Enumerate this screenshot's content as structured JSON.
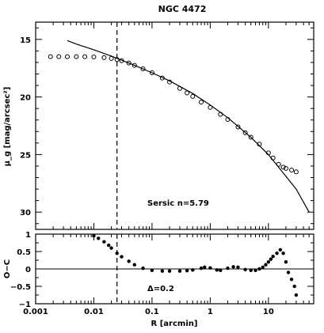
{
  "chart_data": [
    {
      "type": "scatter",
      "title": "NGC 4472",
      "xlabel": "R [arcmin]",
      "ylabel": "μ_g [mag/arcsec²]",
      "x_scale": "log",
      "xlim": [
        0.001,
        60
      ],
      "ylim": [
        13.5,
        31.5
      ],
      "y_inverted": true,
      "x_ticks": [
        "0.001",
        "0.01",
        "0.1",
        "1",
        "10"
      ],
      "y_ticks": [
        "15",
        "20",
        "25",
        "30"
      ],
      "annotation": "Sersic n=5.79",
      "vertical_line_x": 0.025,
      "series": [
        {
          "style": "open-circles",
          "x": [
            0.0018,
            0.0025,
            0.0035,
            0.005,
            0.007,
            0.01,
            0.015,
            0.02,
            0.025,
            0.03,
            0.04,
            0.05,
            0.07,
            0.1,
            0.15,
            0.2,
            0.3,
            0.4,
            0.5,
            0.7,
            1,
            1.5,
            2,
            3,
            4,
            5,
            7,
            10,
            12,
            15,
            18,
            20,
            25,
            30
          ],
          "y": [
            16.5,
            16.5,
            16.5,
            16.5,
            16.5,
            16.52,
            16.58,
            16.65,
            16.75,
            16.85,
            17.05,
            17.25,
            17.55,
            17.9,
            18.35,
            18.7,
            19.25,
            19.65,
            19.95,
            20.45,
            20.9,
            21.5,
            21.95,
            22.6,
            23.1,
            23.5,
            24.1,
            24.85,
            25.3,
            25.85,
            26.1,
            26.2,
            26.35,
            26.5
          ]
        },
        {
          "style": "line",
          "x": [
            0.0035,
            0.005,
            0.01,
            0.02,
            0.05,
            0.1,
            0.2,
            0.5,
            1,
            2,
            5,
            10,
            20,
            30,
            50
          ],
          "y": [
            15.1,
            15.4,
            15.9,
            16.45,
            17.25,
            17.9,
            18.6,
            19.7,
            20.7,
            21.8,
            23.5,
            25.0,
            26.9,
            28.0,
            30.0
          ]
        }
      ]
    },
    {
      "type": "scatter",
      "xlabel": "R [arcmin]",
      "ylabel": "O−C",
      "x_scale": "log",
      "xlim": [
        0.001,
        60
      ],
      "ylim": [
        -1,
        1
      ],
      "x_ticks": [
        "0.001",
        "0.01",
        "0.1",
        "1",
        "10"
      ],
      "y_ticks": [
        "1",
        "0.5",
        "0",
        "−0.5",
        "−1"
      ],
      "annotation": "Δ=0.2",
      "vertical_line_x": 0.025,
      "zero_line": true,
      "series": [
        {
          "style": "filled-dots",
          "x": [
            0.01,
            0.012,
            0.015,
            0.018,
            0.02,
            0.025,
            0.03,
            0.04,
            0.05,
            0.07,
            0.1,
            0.15,
            0.2,
            0.3,
            0.4,
            0.5,
            0.7,
            0.8,
            1,
            1.3,
            1.5,
            2,
            2.5,
            3,
            4,
            5,
            6,
            7,
            8,
            9,
            10,
            11,
            12,
            14,
            16,
            18,
            20,
            22,
            25,
            28,
            30
          ],
          "y": [
            0.95,
            0.88,
            0.78,
            0.68,
            0.6,
            0.45,
            0.35,
            0.22,
            0.12,
            0.02,
            -0.04,
            -0.06,
            -0.06,
            -0.06,
            -0.05,
            -0.03,
            0.02,
            0.05,
            0.03,
            -0.03,
            -0.04,
            0.02,
            0.06,
            0.05,
            -0.02,
            -0.04,
            -0.04,
            0.0,
            0.05,
            0.12,
            0.2,
            0.28,
            0.36,
            0.45,
            0.55,
            0.45,
            0.2,
            -0.1,
            -0.3,
            -0.5,
            -0.75
          ]
        }
      ]
    }
  ]
}
